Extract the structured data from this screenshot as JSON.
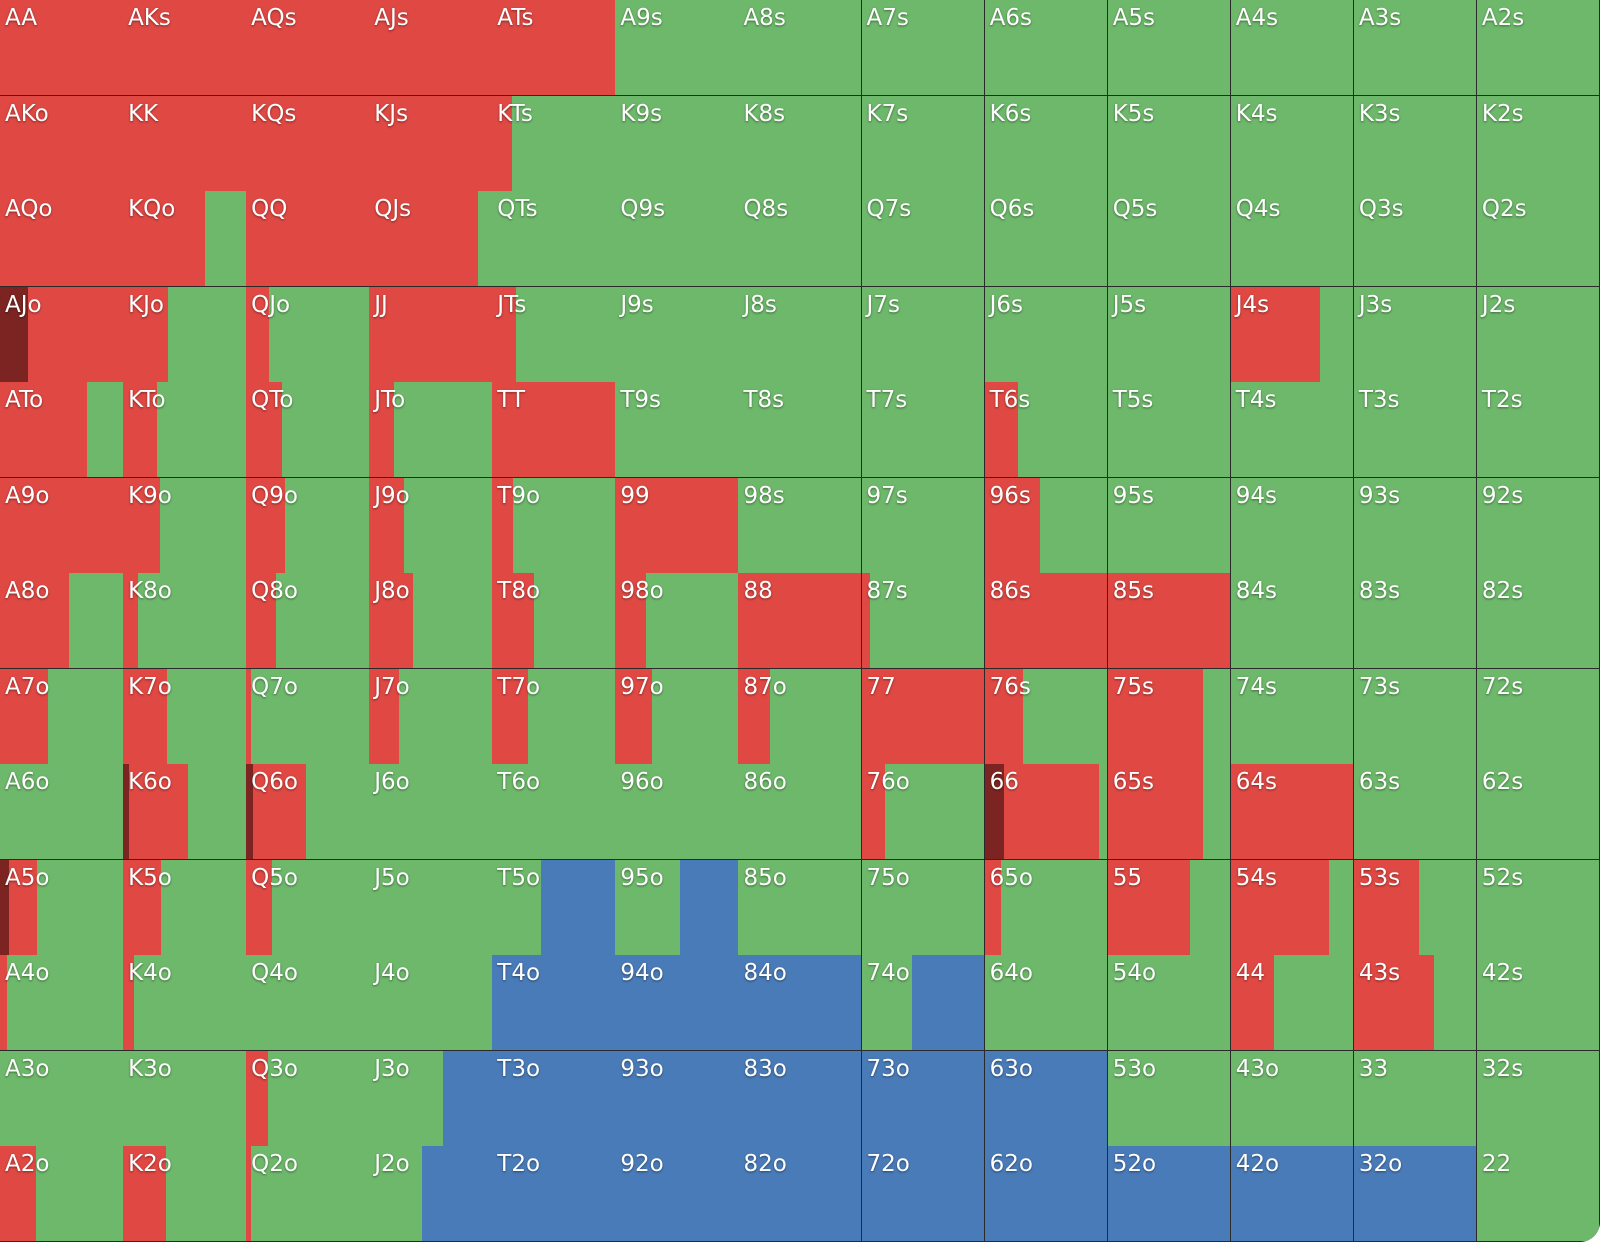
{
  "colors": {
    "raise": "#df4843",
    "allin": "#7c2421",
    "call": "#6db86a",
    "fold": "#497bb8"
  },
  "segment_order": [
    "allin",
    "raise",
    "call",
    "fold"
  ],
  "cells": [
    [
      {
        "h": "AA",
        "s": {
          "raise": 1
        }
      },
      {
        "h": "AKs",
        "s": {
          "raise": 1
        }
      },
      {
        "h": "AQs",
        "s": {
          "raise": 1
        }
      },
      {
        "h": "AJs",
        "s": {
          "raise": 1
        }
      },
      {
        "h": "ATs",
        "s": {
          "raise": 1
        }
      },
      {
        "h": "A9s",
        "s": {
          "call": 1
        }
      },
      {
        "h": "A8s",
        "s": {
          "call": 1
        }
      },
      {
        "h": "A7s",
        "s": {
          "call": 1
        }
      },
      {
        "h": "A6s",
        "s": {
          "call": 1
        }
      },
      {
        "h": "A5s",
        "s": {
          "call": 1
        }
      },
      {
        "h": "A4s",
        "s": {
          "call": 1
        }
      },
      {
        "h": "A3s",
        "s": {
          "call": 1
        }
      },
      {
        "h": "A2s",
        "s": {
          "call": 1
        }
      }
    ],
    [
      {
        "h": "AKo",
        "s": {
          "raise": 1
        }
      },
      {
        "h": "KK",
        "s": {
          "raise": 1
        }
      },
      {
        "h": "KQs",
        "s": {
          "raise": 1
        }
      },
      {
        "h": "KJs",
        "s": {
          "raise": 1
        }
      },
      {
        "h": "KTs",
        "s": {
          "raise": 0.16,
          "call": 0.84
        }
      },
      {
        "h": "K9s",
        "s": {
          "call": 1
        }
      },
      {
        "h": "K8s",
        "s": {
          "call": 1
        }
      },
      {
        "h": "K7s",
        "s": {
          "call": 1
        }
      },
      {
        "h": "K6s",
        "s": {
          "call": 1
        }
      },
      {
        "h": "K5s",
        "s": {
          "call": 1
        }
      },
      {
        "h": "K4s",
        "s": {
          "call": 1
        }
      },
      {
        "h": "K3s",
        "s": {
          "call": 1
        }
      },
      {
        "h": "K2s",
        "s": {
          "call": 1
        }
      }
    ],
    [
      {
        "h": "AQo",
        "s": {
          "raise": 1
        }
      },
      {
        "h": "KQo",
        "s": {
          "raise": 0.67,
          "call": 0.33
        }
      },
      {
        "h": "QQ",
        "s": {
          "raise": 1
        }
      },
      {
        "h": "QJs",
        "s": {
          "raise": 0.89,
          "call": 0.11
        }
      },
      {
        "h": "QTs",
        "s": {
          "call": 1
        }
      },
      {
        "h": "Q9s",
        "s": {
          "call": 1
        }
      },
      {
        "h": "Q8s",
        "s": {
          "call": 1
        }
      },
      {
        "h": "Q7s",
        "s": {
          "call": 1
        }
      },
      {
        "h": "Q6s",
        "s": {
          "call": 1
        }
      },
      {
        "h": "Q5s",
        "s": {
          "call": 1
        }
      },
      {
        "h": "Q4s",
        "s": {
          "call": 1
        }
      },
      {
        "h": "Q3s",
        "s": {
          "call": 1
        }
      },
      {
        "h": "Q2s",
        "s": {
          "call": 1
        }
      }
    ],
    [
      {
        "h": "AJo",
        "s": {
          "allin": 0.23,
          "raise": 0.77
        }
      },
      {
        "h": "KJo",
        "s": {
          "raise": 0.37,
          "call": 0.63
        }
      },
      {
        "h": "QJo",
        "s": {
          "raise": 0.19,
          "call": 0.81
        }
      },
      {
        "h": "JJ",
        "s": {
          "raise": 1
        }
      },
      {
        "h": "JTs",
        "s": {
          "raise": 0.19,
          "call": 0.81
        }
      },
      {
        "h": "J9s",
        "s": {
          "call": 1
        }
      },
      {
        "h": "J8s",
        "s": {
          "call": 1
        }
      },
      {
        "h": "J7s",
        "s": {
          "call": 1
        }
      },
      {
        "h": "J6s",
        "s": {
          "call": 1
        }
      },
      {
        "h": "J5s",
        "s": {
          "call": 1
        }
      },
      {
        "h": "J4s",
        "s": {
          "raise": 0.73,
          "call": 0.27
        }
      },
      {
        "h": "J3s",
        "s": {
          "call": 1
        }
      },
      {
        "h": "J2s",
        "s": {
          "call": 1
        }
      }
    ],
    [
      {
        "h": "ATo",
        "s": {
          "raise": 0.71,
          "call": 0.29
        }
      },
      {
        "h": "KTo",
        "s": {
          "raise": 0.28,
          "call": 0.72
        }
      },
      {
        "h": "QTo",
        "s": {
          "raise": 0.29,
          "call": 0.71
        }
      },
      {
        "h": "JTo",
        "s": {
          "raise": 0.2,
          "call": 0.8
        }
      },
      {
        "h": "TT",
        "s": {
          "raise": 1
        }
      },
      {
        "h": "T9s",
        "s": {
          "call": 1
        }
      },
      {
        "h": "T8s",
        "s": {
          "call": 1
        }
      },
      {
        "h": "T7s",
        "s": {
          "call": 1
        }
      },
      {
        "h": "T6s",
        "s": {
          "raise": 0.27,
          "call": 0.73
        }
      },
      {
        "h": "T5s",
        "s": {
          "call": 1
        }
      },
      {
        "h": "T4s",
        "s": {
          "call": 1
        }
      },
      {
        "h": "T3s",
        "s": {
          "call": 1
        }
      },
      {
        "h": "T2s",
        "s": {
          "call": 1
        }
      }
    ],
    [
      {
        "h": "A9o",
        "s": {
          "raise": 1
        }
      },
      {
        "h": "K9o",
        "s": {
          "raise": 0.3,
          "call": 0.7
        }
      },
      {
        "h": "Q9o",
        "s": {
          "raise": 0.32,
          "call": 0.68
        }
      },
      {
        "h": "J9o",
        "s": {
          "raise": 0.28,
          "call": 0.72
        }
      },
      {
        "h": "T9o",
        "s": {
          "raise": 0.17,
          "call": 0.83
        }
      },
      {
        "h": "99",
        "s": {
          "raise": 1
        }
      },
      {
        "h": "98s",
        "s": {
          "call": 1
        }
      },
      {
        "h": "97s",
        "s": {
          "call": 1
        }
      },
      {
        "h": "96s",
        "s": {
          "raise": 0.45,
          "call": 0.55
        }
      },
      {
        "h": "95s",
        "s": {
          "call": 1
        }
      },
      {
        "h": "94s",
        "s": {
          "call": 1
        }
      },
      {
        "h": "93s",
        "s": {
          "call": 1
        }
      },
      {
        "h": "92s",
        "s": {
          "call": 1
        }
      }
    ],
    [
      {
        "h": "A8o",
        "s": {
          "raise": 0.56,
          "call": 0.44
        }
      },
      {
        "h": "K8o",
        "s": {
          "raise": 0.12,
          "call": 0.88
        }
      },
      {
        "h": "Q8o",
        "s": {
          "raise": 0.24,
          "call": 0.76
        }
      },
      {
        "h": "J8o",
        "s": {
          "raise": 0.36,
          "call": 0.64
        }
      },
      {
        "h": "T8o",
        "s": {
          "raise": 0.34,
          "call": 0.66
        }
      },
      {
        "h": "98o",
        "s": {
          "raise": 0.25,
          "call": 0.75
        }
      },
      {
        "h": "88",
        "s": {
          "raise": 1
        }
      },
      {
        "h": "87s",
        "s": {
          "raise": 0.07,
          "call": 0.93
        }
      },
      {
        "h": "86s",
        "s": {
          "raise": 1
        }
      },
      {
        "h": "85s",
        "s": {
          "raise": 1
        }
      },
      {
        "h": "84s",
        "s": {
          "call": 1
        }
      },
      {
        "h": "83s",
        "s": {
          "call": 1
        }
      },
      {
        "h": "82s",
        "s": {
          "call": 1
        }
      }
    ],
    [
      {
        "h": "A7o",
        "s": {
          "raise": 0.39,
          "call": 0.61
        }
      },
      {
        "h": "K7o",
        "s": {
          "raise": 0.36,
          "call": 0.64
        }
      },
      {
        "h": "Q7o",
        "s": {
          "raise": 0.04,
          "call": 0.96
        }
      },
      {
        "h": "J7o",
        "s": {
          "raise": 0.24,
          "call": 0.76
        }
      },
      {
        "h": "T7o",
        "s": {
          "raise": 0.29,
          "call": 0.71
        }
      },
      {
        "h": "97o",
        "s": {
          "raise": 0.3,
          "call": 0.7
        }
      },
      {
        "h": "87o",
        "s": {
          "raise": 0.26,
          "call": 0.74
        }
      },
      {
        "h": "77",
        "s": {
          "raise": 1
        }
      },
      {
        "h": "76s",
        "s": {
          "raise": 0.31,
          "call": 0.69
        }
      },
      {
        "h": "75s",
        "s": {
          "raise": 0.78,
          "call": 0.22
        }
      },
      {
        "h": "74s",
        "s": {
          "call": 1
        }
      },
      {
        "h": "73s",
        "s": {
          "call": 1
        }
      },
      {
        "h": "72s",
        "s": {
          "call": 1
        }
      }
    ],
    [
      {
        "h": "A6o",
        "s": {
          "call": 1
        }
      },
      {
        "h": "K6o",
        "s": {
          "allin": 0.05,
          "raise": 0.48,
          "call": 0.47
        }
      },
      {
        "h": "Q6o",
        "s": {
          "allin": 0.06,
          "raise": 0.43,
          "call": 0.51
        }
      },
      {
        "h": "J6o",
        "s": {
          "call": 1
        }
      },
      {
        "h": "T6o",
        "s": {
          "call": 1
        }
      },
      {
        "h": "96o",
        "s": {
          "call": 1
        }
      },
      {
        "h": "86o",
        "s": {
          "call": 1
        }
      },
      {
        "h": "76o",
        "s": {
          "raise": 0.19,
          "call": 0.81
        }
      },
      {
        "h": "66",
        "s": {
          "allin": 0.16,
          "raise": 0.77,
          "call": 0.07
        }
      },
      {
        "h": "65s",
        "s": {
          "raise": 0.78,
          "call": 0.22
        }
      },
      {
        "h": "64s",
        "s": {
          "raise": 1
        }
      },
      {
        "h": "63s",
        "s": {
          "call": 1
        }
      },
      {
        "h": "62s",
        "s": {
          "call": 1
        }
      }
    ],
    [
      {
        "h": "A5o",
        "s": {
          "allin": 0.07,
          "raise": 0.23,
          "call": 0.7
        }
      },
      {
        "h": "K5o",
        "s": {
          "raise": 0.31,
          "call": 0.69
        }
      },
      {
        "h": "Q5o",
        "s": {
          "raise": 0.21,
          "call": 0.79
        }
      },
      {
        "h": "J5o",
        "s": {
          "call": 1
        }
      },
      {
        "h": "T5o",
        "s": {
          "call": 0.4,
          "fold": 0.6
        }
      },
      {
        "h": "95o",
        "s": {
          "call": 0.53,
          "fold": 0.47
        }
      },
      {
        "h": "85o",
        "s": {
          "call": 1
        }
      },
      {
        "h": "75o",
        "s": {
          "call": 1
        }
      },
      {
        "h": "65o",
        "s": {
          "raise": 0.13,
          "call": 0.87
        }
      },
      {
        "h": "55",
        "s": {
          "raise": 0.67,
          "call": 0.33
        }
      },
      {
        "h": "54s",
        "s": {
          "raise": 0.8,
          "call": 0.2
        }
      },
      {
        "h": "53s",
        "s": {
          "raise": 0.53,
          "call": 0.47
        }
      },
      {
        "h": "52s",
        "s": {
          "call": 1
        }
      }
    ],
    [
      {
        "h": "A4o",
        "s": {
          "raise": 0.06,
          "call": 0.94
        }
      },
      {
        "h": "K4o",
        "s": {
          "raise": 0.09,
          "call": 0.91
        }
      },
      {
        "h": "Q4o",
        "s": {
          "call": 1
        }
      },
      {
        "h": "J4o",
        "s": {
          "call": 1
        }
      },
      {
        "h": "T4o",
        "s": {
          "fold": 1
        }
      },
      {
        "h": "94o",
        "s": {
          "fold": 1
        }
      },
      {
        "h": "84o",
        "s": {
          "fold": 1
        }
      },
      {
        "h": "74o",
        "s": {
          "call": 0.41,
          "fold": 0.59
        }
      },
      {
        "h": "64o",
        "s": {
          "call": 1
        }
      },
      {
        "h": "54o",
        "s": {
          "call": 1
        }
      },
      {
        "h": "44",
        "s": {
          "raise": 0.35,
          "call": 0.65
        }
      },
      {
        "h": "43s",
        "s": {
          "raise": 0.65,
          "call": 0.35
        }
      },
      {
        "h": "42s",
        "s": {
          "call": 1
        }
      }
    ],
    [
      {
        "h": "A3o",
        "s": {
          "call": 1
        }
      },
      {
        "h": "K3o",
        "s": {
          "call": 1
        }
      },
      {
        "h": "Q3o",
        "s": {
          "raise": 0.18,
          "call": 0.82
        }
      },
      {
        "h": "J3o",
        "s": {
          "call": 0.6,
          "fold": 0.4
        }
      },
      {
        "h": "T3o",
        "s": {
          "fold": 1
        }
      },
      {
        "h": "93o",
        "s": {
          "fold": 1
        }
      },
      {
        "h": "83o",
        "s": {
          "fold": 1
        }
      },
      {
        "h": "73o",
        "s": {
          "fold": 1
        }
      },
      {
        "h": "63o",
        "s": {
          "fold": 1
        }
      },
      {
        "h": "53o",
        "s": {
          "call": 1
        }
      },
      {
        "h": "43o",
        "s": {
          "call": 1
        }
      },
      {
        "h": "33",
        "s": {
          "call": 1
        }
      },
      {
        "h": "32s",
        "s": {
          "call": 1
        }
      }
    ],
    [
      {
        "h": "A2o",
        "s": {
          "raise": 0.29,
          "call": 0.71
        }
      },
      {
        "h": "K2o",
        "s": {
          "raise": 0.35,
          "call": 0.65
        }
      },
      {
        "h": "Q2o",
        "s": {
          "raise": 0.04,
          "call": 0.96
        }
      },
      {
        "h": "J2o",
        "s": {
          "call": 0.43,
          "fold": 0.57
        }
      },
      {
        "h": "T2o",
        "s": {
          "fold": 1
        }
      },
      {
        "h": "92o",
        "s": {
          "fold": 1
        }
      },
      {
        "h": "82o",
        "s": {
          "fold": 1
        }
      },
      {
        "h": "72o",
        "s": {
          "fold": 1
        }
      },
      {
        "h": "62o",
        "s": {
          "fold": 1
        }
      },
      {
        "h": "52o",
        "s": {
          "fold": 1
        }
      },
      {
        "h": "42o",
        "s": {
          "fold": 1
        }
      },
      {
        "h": "32o",
        "s": {
          "fold": 1
        }
      },
      {
        "h": "22",
        "s": {
          "call": 1
        }
      }
    ]
  ]
}
